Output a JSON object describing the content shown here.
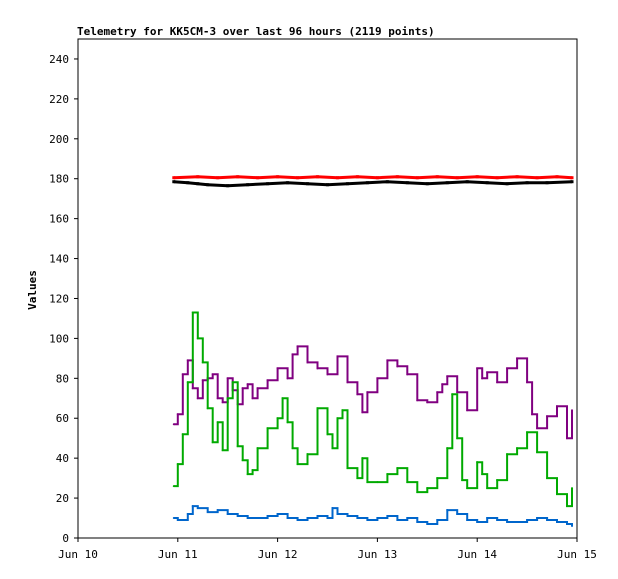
{
  "chart_data": {
    "type": "line",
    "title": "Telemetry for KK5CM-3 over last 96 hours (2119 points)",
    "ylabel": "Values",
    "xlabel": "",
    "x_range": [
      "Jun 10",
      "Jun 15"
    ],
    "ylim": [
      0,
      250
    ],
    "y_ticks": [
      0,
      20,
      40,
      60,
      80,
      100,
      120,
      140,
      160,
      180,
      200,
      220,
      240
    ],
    "x_ticks": [
      "Jun 10",
      "Jun 11",
      "Jun 12",
      "Jun 13",
      "Jun 14",
      "Jun 15"
    ],
    "grid": false,
    "legend": "none",
    "series": [
      {
        "color": "#ff0000",
        "style": "points",
        "x": [
          10.96,
          11.2,
          11.4,
          11.6,
          11.8,
          12.0,
          12.2,
          12.4,
          12.6,
          12.8,
          13.0,
          13.2,
          13.4,
          13.6,
          13.8,
          14.0,
          14.2,
          14.4,
          14.6,
          14.8,
          14.95
        ],
        "values": [
          180.5,
          181,
          180.5,
          181,
          180.5,
          181,
          180.5,
          181,
          180.5,
          181,
          180.5,
          181,
          180.5,
          181,
          180.5,
          181,
          180.5,
          181,
          180.5,
          181,
          180.5
        ]
      },
      {
        "color": "#000000",
        "style": "points",
        "x": [
          10.96,
          11.1,
          11.2,
          11.3,
          11.5,
          11.7,
          11.9,
          12.1,
          12.3,
          12.5,
          12.7,
          12.9,
          13.1,
          13.3,
          13.5,
          13.7,
          13.9,
          14.1,
          14.3,
          14.5,
          14.7,
          14.95
        ],
        "values": [
          178.5,
          178,
          177.5,
          177,
          176.5,
          177,
          177.5,
          178,
          177.5,
          177,
          177.5,
          178,
          178.5,
          178,
          177.5,
          178,
          178.5,
          178,
          177.5,
          178,
          178,
          178.5
        ]
      },
      {
        "color": "#800080",
        "style": "line",
        "x": [
          10.96,
          11.0,
          11.05,
          11.1,
          11.15,
          11.2,
          11.25,
          11.3,
          11.35,
          11.4,
          11.45,
          11.5,
          11.55,
          11.6,
          11.65,
          11.7,
          11.75,
          11.8,
          11.9,
          12.0,
          12.1,
          12.15,
          12.2,
          12.3,
          12.4,
          12.5,
          12.6,
          12.7,
          12.8,
          12.85,
          12.9,
          13.0,
          13.1,
          13.2,
          13.3,
          13.4,
          13.5,
          13.6,
          13.65,
          13.7,
          13.8,
          13.9,
          14.0,
          14.05,
          14.1,
          14.2,
          14.3,
          14.4,
          14.5,
          14.55,
          14.6,
          14.7,
          14.8,
          14.9,
          14.95
        ],
        "values": [
          57,
          62,
          82,
          89,
          75,
          70,
          79,
          80,
          82,
          70,
          68,
          80,
          74,
          67,
          75,
          77,
          70,
          75,
          79,
          85,
          80,
          92,
          96,
          88,
          85,
          82,
          91,
          78,
          72,
          63,
          73,
          80,
          89,
          86,
          82,
          69,
          68,
          73,
          77,
          81,
          73,
          64,
          85,
          80,
          83,
          78,
          85,
          90,
          78,
          62,
          55,
          61,
          66,
          50,
          64
        ]
      },
      {
        "color": "#00aa00",
        "style": "line",
        "x": [
          10.96,
          11.0,
          11.05,
          11.1,
          11.15,
          11.2,
          11.25,
          11.3,
          11.35,
          11.4,
          11.45,
          11.5,
          11.55,
          11.6,
          11.65,
          11.7,
          11.75,
          11.8,
          11.9,
          12.0,
          12.05,
          12.1,
          12.15,
          12.2,
          12.3,
          12.4,
          12.5,
          12.55,
          12.6,
          12.65,
          12.7,
          12.8,
          12.85,
          12.9,
          13.0,
          13.1,
          13.2,
          13.3,
          13.4,
          13.5,
          13.6,
          13.7,
          13.75,
          13.8,
          13.85,
          13.9,
          14.0,
          14.05,
          14.1,
          14.2,
          14.3,
          14.4,
          14.5,
          14.6,
          14.7,
          14.8,
          14.9,
          14.95
        ],
        "values": [
          26,
          37,
          52,
          78,
          113,
          100,
          88,
          65,
          48,
          58,
          44,
          70,
          78,
          46,
          39,
          32,
          34,
          45,
          55,
          60,
          70,
          58,
          45,
          37,
          42,
          65,
          52,
          45,
          60,
          64,
          35,
          30,
          40,
          28,
          28,
          32,
          35,
          28,
          23,
          25,
          30,
          45,
          72,
          50,
          29,
          25,
          38,
          32,
          25,
          29,
          42,
          45,
          53,
          43,
          30,
          22,
          16,
          25
        ]
      },
      {
        "color": "#0066cc",
        "style": "line",
        "x": [
          10.96,
          11.0,
          11.1,
          11.15,
          11.2,
          11.3,
          11.4,
          11.5,
          11.6,
          11.7,
          11.8,
          11.9,
          12.0,
          12.1,
          12.2,
          12.3,
          12.4,
          12.5,
          12.55,
          12.6,
          12.7,
          12.8,
          12.9,
          13.0,
          13.1,
          13.2,
          13.3,
          13.4,
          13.5,
          13.6,
          13.7,
          13.8,
          13.9,
          14.0,
          14.1,
          14.2,
          14.3,
          14.4,
          14.5,
          14.6,
          14.7,
          14.8,
          14.9,
          14.95
        ],
        "values": [
          10,
          9,
          12,
          16,
          15,
          13,
          14,
          12,
          11,
          10,
          10,
          11,
          12,
          10,
          9,
          10,
          11,
          10,
          15,
          12,
          11,
          10,
          9,
          10,
          11,
          9,
          10,
          8,
          7,
          9,
          14,
          12,
          9,
          8,
          10,
          9,
          8,
          8,
          9,
          10,
          9,
          8,
          7,
          6
        ]
      }
    ]
  }
}
